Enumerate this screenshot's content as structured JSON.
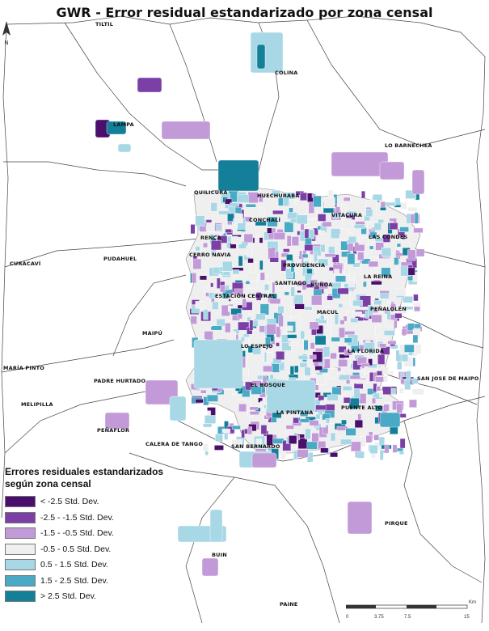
{
  "title": "GWR - Error residual estandarizado por zona censal",
  "classes": [
    {
      "label": "< -2.5 Std. Dev.",
      "color": "#4a0e6b"
    },
    {
      "label": "-2.5 - -1.5 Std. Dev.",
      "color": "#7b3fa6"
    },
    {
      "label": "-1.5 - -0.5 Std. Dev.",
      "color": "#c39ad8"
    },
    {
      "label": "-0.5 - 0.5 Std. Dev.",
      "color": "#efefef"
    },
    {
      "label": "0.5 - 1.5 Std. Dev.",
      "color": "#a8d8e6"
    },
    {
      "label": "1.5 - 2.5 Std. Dev.",
      "color": "#4aa9c4"
    },
    {
      "label": "> 2.5 Std. Dev.",
      "color": "#137f99"
    }
  ],
  "legend": {
    "title_line1": "Errores residuales estandarizados",
    "title_line2": "según zona censal"
  },
  "comunas": [
    "TILTIL",
    "COLINA",
    "LAMPA",
    "LO BARNECHEA",
    "QUILICURA",
    "HUECHURABA",
    "CONCHALÍ",
    "VITACURA",
    "RENCA",
    "LAS CONDES",
    "CURACAVÍ",
    "PUDAHUEL",
    "CERRO NAVIA",
    "PROVIDENCIA",
    "LA REINA",
    "SANTIAGO",
    "ÑUÑOA",
    "ESTACIÓN CENTRAL",
    "MACUL",
    "PEÑALOLÉN",
    "MAIPÚ",
    "LO ESPEJO",
    "LA FLORIDA",
    "MARÍA PINTO",
    "PADRE HURTADO",
    "SAN JOSE DE MAIPO",
    "EL BOSQUE",
    "MELIPILLA",
    "LA PINTANA",
    "PUENTE ALTO",
    "PEÑAFLOR",
    "CALERA DE TANGO",
    "SAN BERNARDO",
    "PIRQUE",
    "BUIN",
    "PAINE"
  ],
  "scale": {
    "ticks": [
      "0",
      "3.75",
      "7.5",
      "15"
    ],
    "unit": "Km"
  },
  "north": "N"
}
